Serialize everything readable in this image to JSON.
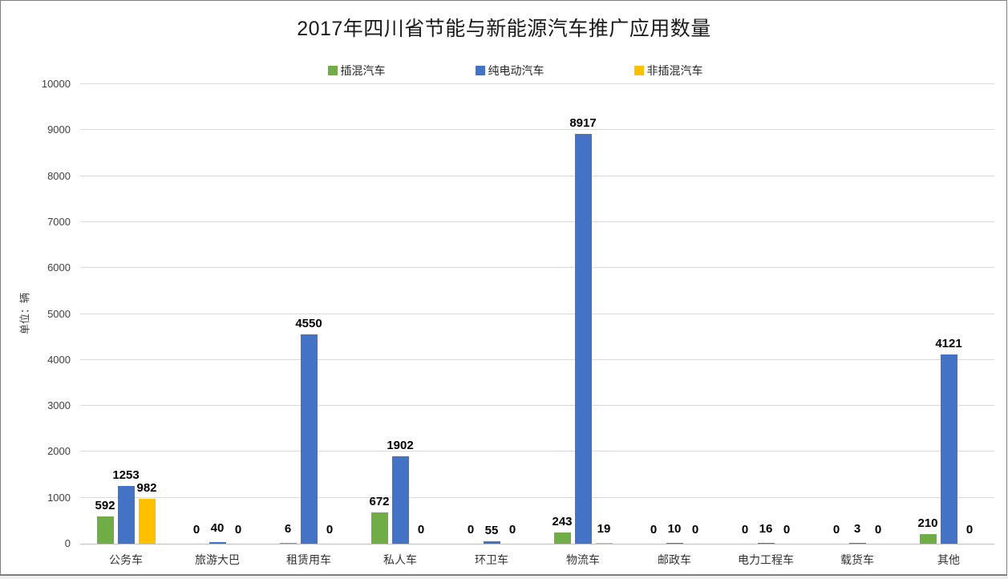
{
  "chart_data": {
    "type": "bar",
    "title": "2017年四川省节能与新能源汽车推广应用数量",
    "ylabel": "单位：辆",
    "xlabel": "",
    "categories": [
      "公务车",
      "旅游大巴",
      "租赁用车",
      "私人车",
      "环卫车",
      "物流车",
      "邮政车",
      "电力工程车",
      "载货车",
      "其他"
    ],
    "series": [
      {
        "name": "插混汽车",
        "color": "#70AD47",
        "values": [
          592,
          0,
          6,
          672,
          0,
          243,
          0,
          0,
          0,
          210
        ]
      },
      {
        "name": "纯电动汽车",
        "color": "#4472C4",
        "values": [
          1253,
          40,
          4550,
          1902,
          55,
          8917,
          10,
          16,
          3,
          4121
        ]
      },
      {
        "name": "非插混汽车",
        "color": "#FFC000",
        "values": [
          982,
          0,
          0,
          0,
          0,
          19,
          0,
          0,
          0,
          0
        ]
      }
    ],
    "ylim": [
      0,
      10000
    ],
    "ytick_step": 1000,
    "yticks": [
      0,
      1000,
      2000,
      3000,
      4000,
      5000,
      6000,
      7000,
      8000,
      9000,
      10000
    ],
    "grid": true,
    "data_labels": true,
    "legend_position": "top"
  },
  "colors": {
    "grid": "#D9D9D9",
    "zero_line": "#BFBFBF",
    "tick_text": "#404040",
    "data_label_text": "#000000",
    "frame_border": "#7F7F7F"
  }
}
